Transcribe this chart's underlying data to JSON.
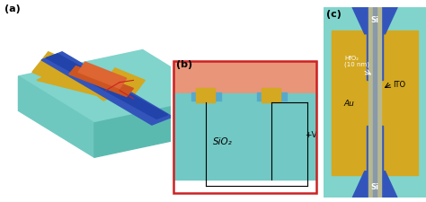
{
  "colors": {
    "au": "#D4A820",
    "hfo2_blue": "#55AACC",
    "ito": "#E8957A",
    "teal_light": "#80D4CC",
    "teal_mid": "#6EC8C0",
    "teal_dark": "#5BBAB0",
    "si_blue": "#3355BB",
    "si_dark": "#2244AA",
    "red_border": "#CC2222",
    "black": "#000000",
    "white": "#FFFFFF",
    "gray_wire": "#555555",
    "orange_wg": "#CC5522",
    "bg_white": "#FFFFFF",
    "sio2_teal": "#72C8C4"
  },
  "panel_labels": [
    "(a)",
    "(b)",
    "(c)"
  ],
  "legend_items": [
    {
      "label": "Au",
      "color": "#D4A820"
    },
    {
      "label": "HfO₂",
      "color": "#55AACC"
    },
    {
      "label": "ITO",
      "color": "#E8957A"
    }
  ],
  "panel_b_text": "SiO₂",
  "panel_b_voltage": "+V"
}
